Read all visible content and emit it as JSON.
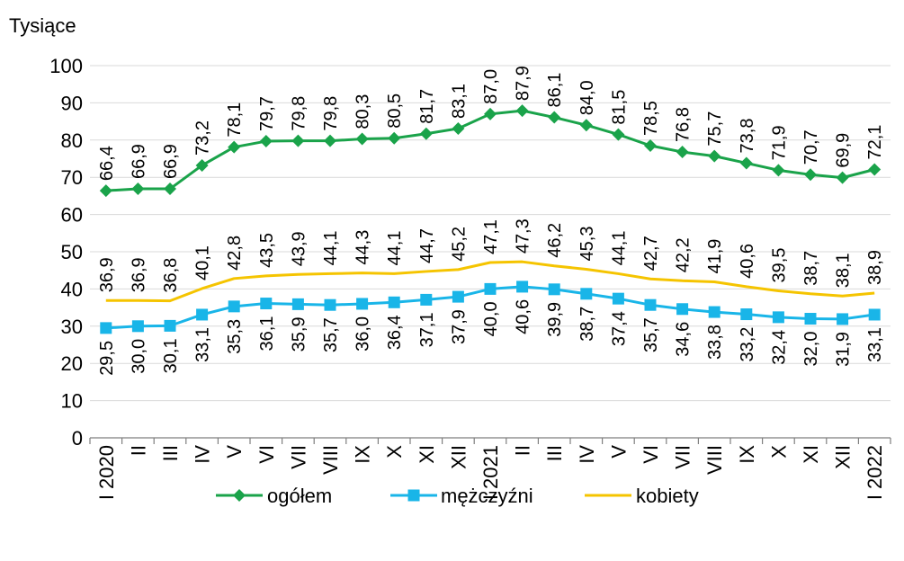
{
  "chart_data": {
    "type": "line",
    "ylabel": "Tysiące",
    "ylim": [
      0,
      100
    ],
    "yticks": [
      "0",
      "10",
      "20",
      "30",
      "40",
      "50",
      "60",
      "70",
      "80",
      "90",
      "100"
    ],
    "categories": [
      "I 2020",
      "II",
      "III",
      "IV",
      "V",
      "VI",
      "VII",
      "VIII",
      "IX",
      "X",
      "XI",
      "XII",
      "I 2021",
      "II",
      "III",
      "IV",
      "V",
      "VI",
      "VII",
      "VIII",
      "IX",
      "X",
      "XI",
      "XII",
      "I 2022"
    ],
    "grid": "horizontal",
    "legend_position": "bottom",
    "series": [
      {
        "name": "ogółem",
        "color": "#1aa34a",
        "marker": "diamond",
        "values": [
          66.4,
          66.9,
          66.9,
          73.2,
          78.1,
          79.7,
          79.8,
          79.8,
          80.3,
          80.5,
          81.7,
          83.1,
          87.0,
          87.9,
          86.1,
          84.0,
          81.5,
          78.5,
          76.8,
          75.7,
          73.8,
          71.9,
          70.7,
          69.9,
          72.1
        ],
        "labels": [
          "66,4",
          "66,9",
          "66,9",
          "73,2",
          "78,1",
          "79,7",
          "79,8",
          "79,8",
          "80,3",
          "80,5",
          "81,7",
          "83,1",
          "87,0",
          "87,9",
          "86,1",
          "84,0",
          "81,5",
          "78,5",
          "76,8",
          "75,7",
          "73,8",
          "71,9",
          "70,7",
          "69,9",
          "72,1"
        ]
      },
      {
        "name": "mężczyźni",
        "color": "#19b5e8",
        "marker": "square",
        "values": [
          29.5,
          30.0,
          30.1,
          33.1,
          35.3,
          36.1,
          35.9,
          35.7,
          36.0,
          36.4,
          37.1,
          37.9,
          40.0,
          40.6,
          39.9,
          38.7,
          37.4,
          35.7,
          34.6,
          33.8,
          33.2,
          32.4,
          32.0,
          31.9,
          33.1
        ],
        "labels": [
          "29,5",
          "30,0",
          "30,1",
          "33,1",
          "35,3",
          "36,1",
          "35,9",
          "35,7",
          "36,0",
          "36,4",
          "37,1",
          "37,9",
          "40,0",
          "40,6",
          "39,9",
          "38,7",
          "37,4",
          "35,7",
          "34,6",
          "33,8",
          "33,2",
          "32,4",
          "32,0",
          "31,9",
          "33,1"
        ]
      },
      {
        "name": "kobiety",
        "color": "#f5c400",
        "marker": "none",
        "values": [
          36.9,
          36.9,
          36.8,
          40.1,
          42.8,
          43.5,
          43.9,
          44.1,
          44.3,
          44.1,
          44.7,
          45.2,
          47.1,
          47.3,
          46.2,
          45.3,
          44.1,
          42.7,
          42.2,
          41.9,
          40.6,
          39.5,
          38.7,
          38.1,
          38.9
        ],
        "labels": [
          "36,9",
          "36,9",
          "36,8",
          "40,1",
          "42,8",
          "43,5",
          "43,9",
          "44,1",
          "44,3",
          "44,1",
          "44,7",
          "45,2",
          "47,1",
          "47,3",
          "46,2",
          "45,3",
          "44,1",
          "42,7",
          "42,2",
          "41,9",
          "40,6",
          "39,5",
          "38,7",
          "38,1",
          "38,9"
        ]
      }
    ]
  }
}
